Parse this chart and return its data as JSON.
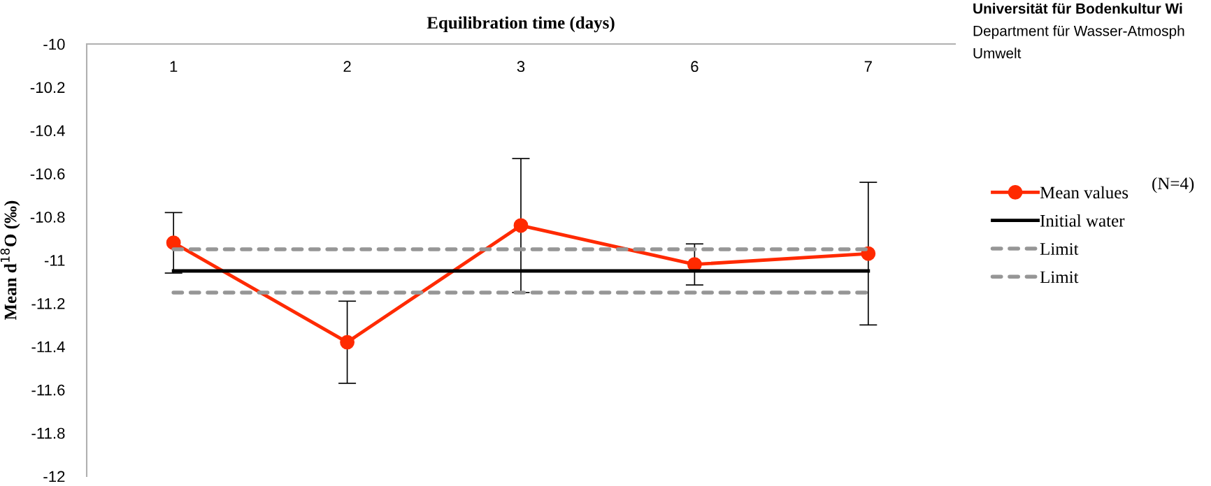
{
  "chart_data": {
    "type": "line",
    "xlabel": "Equilibration time (days)",
    "ylabel": "Mean d$^{18}$O (‰)",
    "categories": [
      "1",
      "2",
      "3",
      "6",
      "7"
    ],
    "series": [
      {
        "name": "Mean values",
        "color": "#ff2a00",
        "values": [
          -10.92,
          -11.38,
          -10.84,
          -11.02,
          -10.97
        ],
        "errors": [
          0.14,
          0.19,
          0.31,
          0.095,
          0.33
        ],
        "marker": "circle",
        "line_style": "solid"
      },
      {
        "name": "Initial water",
        "color": "#000000",
        "values": [
          -11.05,
          -11.05,
          -11.05,
          -11.05,
          -11.05
        ],
        "marker": "none",
        "line_style": "solid"
      },
      {
        "name": "Limit",
        "color": "#969696",
        "values": [
          -10.95,
          -10.95,
          -10.95,
          -10.95,
          -10.95
        ],
        "marker": "none",
        "line_style": "dashed"
      },
      {
        "name": "Limit",
        "color": "#969696",
        "values": [
          -11.15,
          -11.15,
          -11.15,
          -11.15,
          -11.15
        ],
        "marker": "none",
        "line_style": "dashed"
      }
    ],
    "ylim": [
      -12,
      -10
    ],
    "yticks": [
      -10,
      -10.2,
      -10.4,
      -10.6,
      -10.8,
      -11,
      -11.2,
      -11.4,
      -11.6,
      -11.8,
      -12
    ],
    "grid": false,
    "legend": "right",
    "annotations": [
      "(N=4)",
      "Universität für Bodenkultur Wi",
      "Department für Wasser-Atmosph",
      "Umwelt"
    ]
  }
}
